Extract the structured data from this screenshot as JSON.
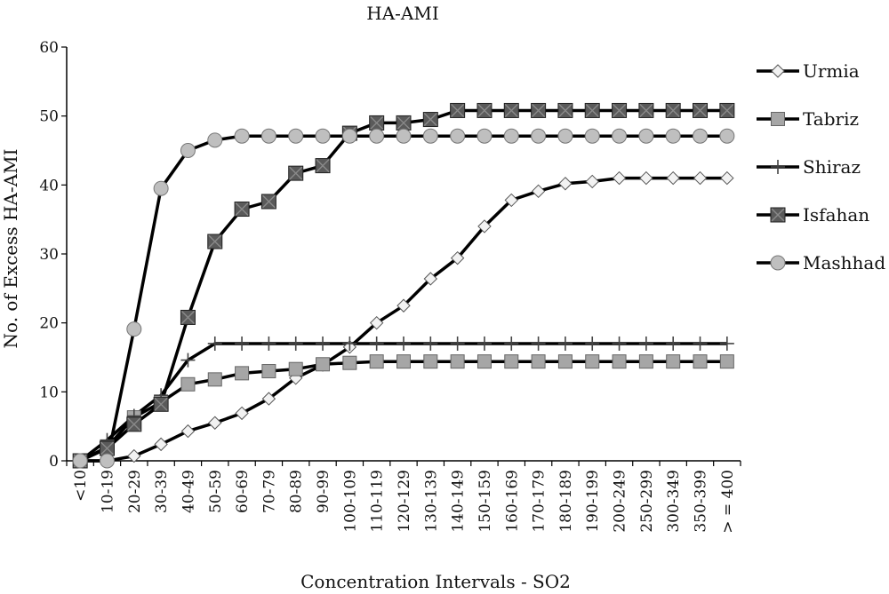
{
  "chart_data": {
    "type": "line",
    "title": "HA-AMI",
    "xlabel": "Concentration Intervals - SO2",
    "ylabel": "No. of Excess HA-AMI",
    "ylim": [
      0,
      60
    ],
    "yticks": [
      "0",
      "10",
      "20",
      "30",
      "40",
      "50",
      "60"
    ],
    "legend_position": "right",
    "categories": [
      "<10",
      "10-19",
      "20-29",
      "30-39",
      "40-49",
      "50-59",
      "60-69",
      "70-79",
      "80-89",
      "90-99",
      "100-109",
      "110-119",
      "120-129",
      "130-139",
      "140-149",
      "150-159",
      "160-169",
      "170-179",
      "180-189",
      "190-199",
      "200-249",
      "250-299",
      "300-349",
      "350-399",
      "> = 400"
    ],
    "series": [
      {
        "name": "Urmia",
        "marker": "diamond",
        "values": [
          0,
          0,
          0.7,
          2.4,
          4.3,
          5.5,
          6.9,
          9.0,
          12.0,
          13.9,
          16.5,
          20.0,
          22.5,
          26.4,
          29.4,
          34.0,
          37.8,
          39.1,
          40.2,
          40.5,
          41.0,
          41.0,
          41.0,
          41.0,
          41.0
        ]
      },
      {
        "name": "Tabriz",
        "marker": "square",
        "values": [
          0,
          2.0,
          6.3,
          8.5,
          11.1,
          11.8,
          12.7,
          13.0,
          13.3,
          14.0,
          14.2,
          14.4,
          14.4,
          14.4,
          14.4,
          14.4,
          14.4,
          14.4,
          14.4,
          14.4,
          14.4,
          14.4,
          14.4,
          14.4,
          14.4
        ]
      },
      {
        "name": "Shiraz",
        "marker": "plus",
        "values": [
          0,
          3.0,
          6.5,
          9.5,
          14.6,
          17.0,
          17.0,
          17.0,
          17.0,
          17.0,
          17.0,
          17.0,
          17.0,
          17.0,
          17.0,
          17.0,
          17.0,
          17.0,
          17.0,
          17.0,
          17.0,
          17.0,
          17.0,
          17.0,
          17.0
        ]
      },
      {
        "name": "Isfahan",
        "marker": "xsquare",
        "values": [
          0,
          1.8,
          5.3,
          8.2,
          20.8,
          31.8,
          36.5,
          37.6,
          41.7,
          42.8,
          47.5,
          49.0,
          49.0,
          49.5,
          50.8,
          50.8,
          50.8,
          50.8,
          50.8,
          50.8,
          50.8,
          50.8,
          50.8,
          50.8,
          50.8
        ]
      },
      {
        "name": "Mashhad",
        "marker": "circle",
        "values": [
          0,
          0,
          19.1,
          39.5,
          45.0,
          46.5,
          47.1,
          47.1,
          47.1,
          47.1,
          47.1,
          47.1,
          47.1,
          47.1,
          47.1,
          47.1,
          47.1,
          47.1,
          47.1,
          47.1,
          47.1,
          47.1,
          47.1,
          47.1,
          47.1
        ]
      }
    ],
    "colors": {
      "line": "#000000",
      "diamond_fill": "#f2f2f2",
      "square_fill": "#a6a6a6",
      "plus_fill": "#dcdcdc",
      "xsquare_fill": "#5a5a5a",
      "circle_fill": "#bfbfbf"
    }
  }
}
